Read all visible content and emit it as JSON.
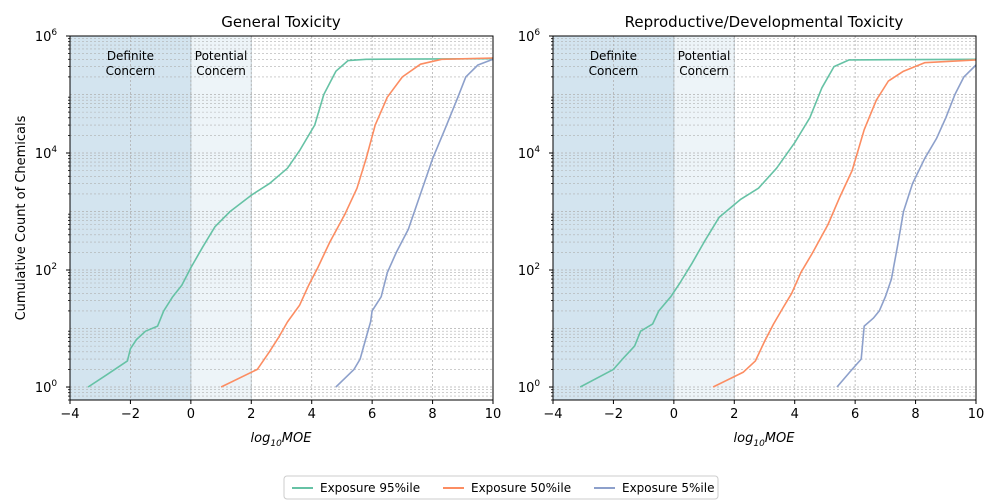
{
  "chart_data": [
    {
      "type": "line",
      "title": "General Toxicity",
      "xlabel": "log10MOE",
      "ylabel": "Cumulative Count of Chemicals",
      "xlim": [
        -4,
        10
      ],
      "ylim": [
        0.6,
        1000000
      ],
      "yscale": "log",
      "grid": true,
      "x_ticks": [
        "−4",
        "−2",
        "0",
        "2",
        "4",
        "6",
        "8",
        "10"
      ],
      "y_ticks": [
        "10^0",
        "10^2",
        "10^4",
        "10^6"
      ],
      "regions": [
        {
          "label_top": "Definite",
          "label_bottom": "Concern",
          "x": [
            -4,
            0
          ],
          "color": "#d3e4ef"
        },
        {
          "label_top": "Potential",
          "label_bottom": "Concern",
          "x": [
            0,
            2
          ],
          "color": "#edf4f8"
        }
      ],
      "series": [
        {
          "name": "Exposure 95%ile",
          "color": "#66c2a5",
          "points": [
            [
              -3.4,
              1
            ],
            [
              -2.8,
              1.6
            ],
            [
              -2.1,
              2.8
            ],
            [
              -2.0,
              4.5
            ],
            [
              -1.8,
              6.5
            ],
            [
              -1.5,
              9
            ],
            [
              -1.1,
              11
            ],
            [
              -0.9,
              20
            ],
            [
              -0.6,
              35
            ],
            [
              -0.3,
              55
            ],
            [
              0,
              110
            ],
            [
              0.4,
              250
            ],
            [
              0.8,
              550
            ],
            [
              1.3,
              1000
            ],
            [
              2.0,
              1900
            ],
            [
              2.6,
              3000
            ],
            [
              3.2,
              5500
            ],
            [
              3.6,
              11000
            ],
            [
              4.1,
              30000
            ],
            [
              4.4,
              100000
            ],
            [
              4.8,
              250000
            ],
            [
              5.2,
              380000
            ],
            [
              5.8,
              400000
            ],
            [
              10,
              410000
            ]
          ]
        },
        {
          "name": "Exposure 50%ile",
          "color": "#fc8d62",
          "points": [
            [
              1.0,
              1
            ],
            [
              2.2,
              2
            ],
            [
              2.6,
              4
            ],
            [
              2.9,
              7
            ],
            [
              3.2,
              13
            ],
            [
              3.6,
              25
            ],
            [
              3.9,
              55
            ],
            [
              4.2,
              110
            ],
            [
              4.6,
              300
            ],
            [
              5.1,
              900
            ],
            [
              5.5,
              2500
            ],
            [
              5.8,
              8000
            ],
            [
              6.1,
              30000
            ],
            [
              6.5,
              90000
            ],
            [
              7.0,
              200000
            ],
            [
              7.6,
              330000
            ],
            [
              8.3,
              400000
            ],
            [
              10,
              420000
            ]
          ]
        },
        {
          "name": "Exposure 5%ile",
          "color": "#8da0cb",
          "points": [
            [
              4.8,
              1
            ],
            [
              5.4,
              2
            ],
            [
              5.6,
              3
            ],
            [
              5.8,
              7
            ],
            [
              5.95,
              13
            ],
            [
              6.0,
              20
            ],
            [
              6.3,
              35
            ],
            [
              6.5,
              90
            ],
            [
              6.8,
              200
            ],
            [
              7.2,
              500
            ],
            [
              7.6,
              2000
            ],
            [
              8.0,
              8000
            ],
            [
              8.4,
              25000
            ],
            [
              8.8,
              80000
            ],
            [
              9.1,
              200000
            ],
            [
              9.5,
              320000
            ],
            [
              10,
              400000
            ]
          ]
        }
      ]
    },
    {
      "type": "line",
      "title": "Reproductive/Developmental Toxicity",
      "xlabel": "log10MOE",
      "ylabel": "",
      "xlim": [
        -4,
        10
      ],
      "ylim": [
        0.6,
        1000000
      ],
      "yscale": "log",
      "grid": true,
      "x_ticks": [
        "−4",
        "−2",
        "0",
        "2",
        "4",
        "6",
        "8",
        "10"
      ],
      "y_ticks": [
        "10^0",
        "10^2",
        "10^4",
        "10^6"
      ],
      "regions": [
        {
          "label_top": "Definite",
          "label_bottom": "Concern",
          "x": [
            -4,
            0
          ],
          "color": "#d3e4ef"
        },
        {
          "label_top": "Potential",
          "label_bottom": "Concern",
          "x": [
            0,
            2
          ],
          "color": "#edf4f8"
        }
      ],
      "series": [
        {
          "name": "Exposure 95%ile",
          "color": "#66c2a5",
          "points": [
            [
              -3.1,
              1
            ],
            [
              -2.0,
              2
            ],
            [
              -1.7,
              3
            ],
            [
              -1.3,
              5
            ],
            [
              -1.1,
              9
            ],
            [
              -0.7,
              12
            ],
            [
              -0.5,
              20
            ],
            [
              -0.1,
              35
            ],
            [
              0.2,
              60
            ],
            [
              0.6,
              130
            ],
            [
              1.0,
              300
            ],
            [
              1.5,
              800
            ],
            [
              2.2,
              1600
            ],
            [
              2.8,
              2500
            ],
            [
              3.4,
              5500
            ],
            [
              4.0,
              15000
            ],
            [
              4.5,
              40000
            ],
            [
              4.9,
              130000
            ],
            [
              5.3,
              300000
            ],
            [
              5.8,
              390000
            ],
            [
              10,
              400000
            ]
          ]
        },
        {
          "name": "Exposure 50%ile",
          "color": "#fc8d62",
          "points": [
            [
              1.3,
              1
            ],
            [
              2.3,
              1.8
            ],
            [
              2.7,
              2.8
            ],
            [
              3.0,
              6
            ],
            [
              3.3,
              12
            ],
            [
              3.6,
              22
            ],
            [
              3.9,
              40
            ],
            [
              4.2,
              90
            ],
            [
              4.6,
              200
            ],
            [
              5.1,
              600
            ],
            [
              5.5,
              1800
            ],
            [
              5.9,
              5000
            ],
            [
              6.3,
              25000
            ],
            [
              6.7,
              80000
            ],
            [
              7.1,
              170000
            ],
            [
              7.6,
              250000
            ],
            [
              8.3,
              350000
            ],
            [
              10,
              390000
            ]
          ]
        },
        {
          "name": "Exposure 5%ile",
          "color": "#8da0cb",
          "points": [
            [
              5.4,
              1
            ],
            [
              5.9,
              2
            ],
            [
              6.2,
              3
            ],
            [
              6.3,
              11
            ],
            [
              6.6,
              15
            ],
            [
              6.8,
              20
            ],
            [
              7.0,
              35
            ],
            [
              7.2,
              70
            ],
            [
              7.4,
              250
            ],
            [
              7.6,
              1000
            ],
            [
              7.9,
              3000
            ],
            [
              8.3,
              8000
            ],
            [
              8.7,
              18000
            ],
            [
              9.0,
              40000
            ],
            [
              9.3,
              100000
            ],
            [
              9.6,
              200000
            ],
            [
              10,
              320000
            ]
          ]
        }
      ]
    }
  ],
  "legend": {
    "position": "bottom-center",
    "items": [
      {
        "label": "Exposure 95%ile",
        "color": "#66c2a5"
      },
      {
        "label": "Exposure 50%ile",
        "color": "#fc8d62"
      },
      {
        "label": "Exposure 5%ile",
        "color": "#8da0cb"
      }
    ]
  }
}
